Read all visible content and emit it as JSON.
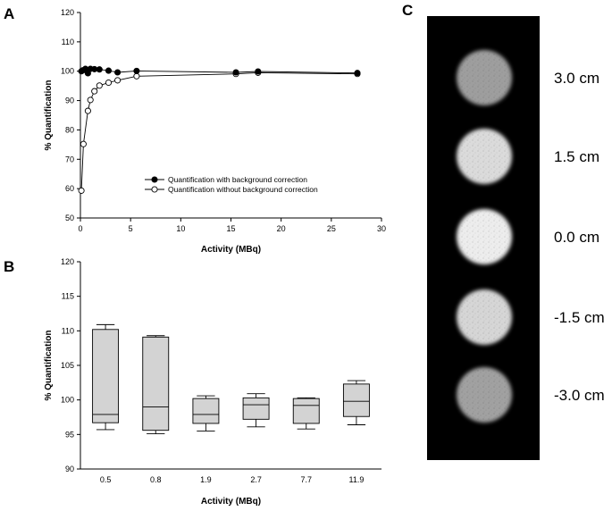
{
  "panel_labels": {
    "a": "A",
    "b": "B",
    "c": "C"
  },
  "chart_data": [
    {
      "panel": "A",
      "type": "scatter",
      "xlabel": "Activity (MBq)",
      "ylabel": "% Quantification",
      "xlim": [
        0,
        30
      ],
      "ylim": [
        50,
        120
      ],
      "xticks": [
        0,
        5,
        10,
        15,
        20,
        25,
        30
      ],
      "yticks": [
        50,
        60,
        70,
        80,
        90,
        100,
        110,
        120
      ],
      "legend_position": "center-right",
      "series": [
        {
          "name": "Quantification with background correction",
          "marker": "filled-circle",
          "color": "#000000",
          "x": [
            0.1,
            0.25,
            0.5,
            0.75,
            1.0,
            1.4,
            1.9,
            2.8,
            3.7,
            5.6,
            15.5,
            17.7,
            27.6
          ],
          "y": [
            100.0,
            100.3,
            100.8,
            99.3,
            100.8,
            100.7,
            100.6,
            100.2,
            99.6,
            100.1,
            99.6,
            99.9,
            99.4
          ]
        },
        {
          "name": "Quantification without background correction",
          "marker": "open-circle",
          "color": "#000000",
          "x": [
            0.1,
            0.3,
            0.75,
            1.0,
            1.4,
            1.9,
            2.8,
            3.7,
            5.6,
            15.5,
            17.7,
            27.6
          ],
          "y": [
            59.3,
            75.2,
            86.5,
            90.2,
            93.2,
            95.1,
            96.1,
            96.9,
            98.3,
            99.1,
            99.5,
            99.1
          ]
        }
      ]
    },
    {
      "panel": "B",
      "type": "box",
      "xlabel": "Activity (MBq)",
      "ylabel": "% Quantification",
      "ylim": [
        90,
        120
      ],
      "yticks": [
        90,
        95,
        100,
        105,
        110,
        115,
        120
      ],
      "categories": [
        "0.5",
        "0.8",
        "1.9",
        "2.7",
        "7.7",
        "11.9"
      ],
      "boxes": [
        {
          "min": 95.7,
          "q1": 96.7,
          "median": 97.9,
          "q3": 110.2,
          "max": 110.9
        },
        {
          "min": 95.1,
          "q1": 95.6,
          "median": 99.0,
          "q3": 109.1,
          "max": 109.3
        },
        {
          "min": 95.5,
          "q1": 96.6,
          "median": 97.9,
          "q3": 100.2,
          "max": 100.6
        },
        {
          "min": 96.1,
          "q1": 97.2,
          "median": 99.3,
          "q3": 100.3,
          "max": 100.9
        },
        {
          "min": 95.8,
          "q1": 96.6,
          "median": 99.2,
          "q3": 100.2,
          "max": 100.3
        },
        {
          "min": 96.4,
          "q1": 97.6,
          "median": 99.8,
          "q3": 102.3,
          "max": 102.8
        }
      ],
      "box_fill": "#d3d3d3"
    }
  ],
  "panel_c": {
    "labels": [
      "3.0 cm",
      "1.5 cm",
      "0.0 cm",
      "-1.5 cm",
      "-3.0 cm"
    ],
    "brightness": [
      0.62,
      0.86,
      0.93,
      0.84,
      0.63
    ]
  }
}
